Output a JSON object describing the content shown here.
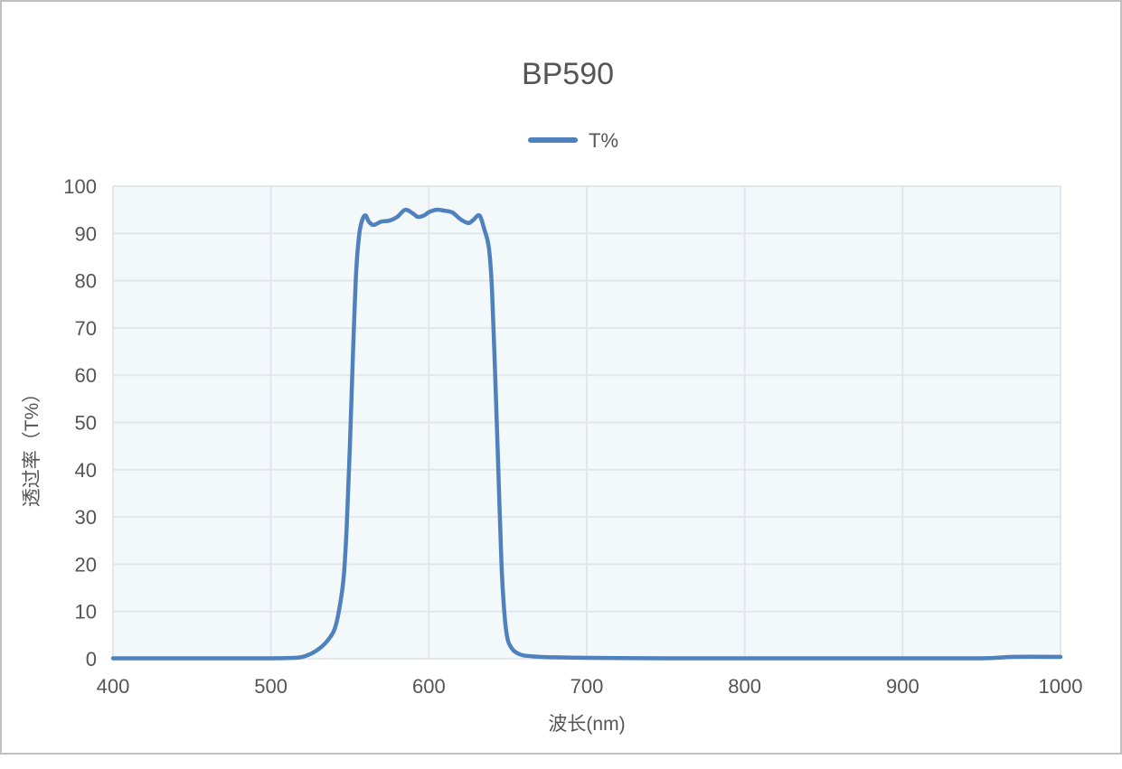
{
  "chart_data": {
    "type": "line",
    "title": "BP590",
    "xlabel": "波长(nm)",
    "ylabel": "透过率（T%）",
    "xlim": [
      400,
      1000
    ],
    "ylim": [
      0,
      100
    ],
    "xticks": [
      400,
      500,
      600,
      700,
      800,
      900,
      1000
    ],
    "yticks": [
      0,
      10,
      20,
      30,
      40,
      50,
      60,
      70,
      80,
      90,
      100
    ],
    "grid": true,
    "legend_position": "top",
    "plot_background": "#f3f8fb",
    "series": [
      {
        "name": "T%",
        "color": "#4f81bd",
        "x": [
          400,
          450,
          500,
          515,
          520,
          525,
          530,
          535,
          540,
          543,
          546,
          548,
          550,
          552,
          554,
          556,
          558,
          560,
          562,
          565,
          570,
          575,
          580,
          585,
          590,
          593,
          597,
          600,
          605,
          610,
          615,
          620,
          625,
          628,
          632,
          635,
          638,
          640,
          642,
          644,
          646,
          648,
          650,
          653,
          656,
          660,
          670,
          680,
          700,
          750,
          800,
          850,
          900,
          950,
          970,
          1000
        ],
        "y": [
          0.1,
          0.1,
          0.1,
          0.2,
          0.4,
          1,
          2,
          3.5,
          6,
          10,
          17,
          28,
          45,
          65,
          82,
          90,
          93,
          93.8,
          92.5,
          91.8,
          92.5,
          92.7,
          93.5,
          95,
          94.2,
          93.5,
          93.8,
          94.5,
          95,
          94.8,
          94.4,
          93,
          92.2,
          92.8,
          93.8,
          91,
          87,
          78,
          60,
          40,
          20,
          9,
          4,
          2,
          1.2,
          0.7,
          0.4,
          0.3,
          0.2,
          0.1,
          0.1,
          0.1,
          0.1,
          0.1,
          0.4,
          0.4
        ]
      }
    ]
  }
}
